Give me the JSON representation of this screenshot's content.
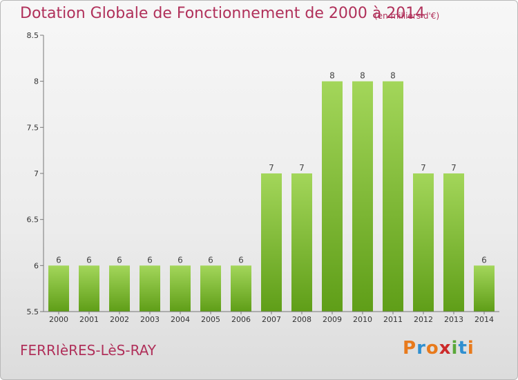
{
  "header": {
    "title": "Dotation Globale de Fonctionnement de 2000 à 2014",
    "subtitle": "(en milliers d'€)"
  },
  "footer": {
    "commune": "FERRIèRES-LèS-RAY",
    "logo": "Proxiti",
    "logo_colors": [
      "#e87a1c",
      "#2f8fd0",
      "#e87a1c",
      "#cc2a2a",
      "#5aa83a",
      "#2f8fd0",
      "#e87a1c"
    ]
  },
  "colors": {
    "title": "#b0305a",
    "bar_light": "#9fd24e",
    "bar_dark": "#5f9e18",
    "axis": "#666666"
  },
  "chart_data": {
    "type": "bar",
    "title": "Dotation Globale de Fonctionnement de 2000 à 2014",
    "subtitle": "(en milliers d'€)",
    "categories": [
      "2000",
      "2001",
      "2002",
      "2003",
      "2004",
      "2005",
      "2006",
      "2007",
      "2008",
      "2009",
      "2010",
      "2011",
      "2012",
      "2013",
      "2014"
    ],
    "values": [
      6,
      6,
      6,
      6,
      6,
      6,
      6,
      7,
      7,
      8,
      8,
      8,
      7,
      7,
      6
    ],
    "data_labels": [
      "6",
      "6",
      "6",
      "6",
      "6",
      "6",
      "6",
      "7",
      "7",
      "8",
      "8",
      "8",
      "7",
      "7",
      "6"
    ],
    "ylim": [
      5.5,
      8.5
    ],
    "yticks": [
      5.5,
      6,
      6.5,
      7,
      7.5,
      8,
      8.5
    ],
    "ytick_labels": [
      "5.5",
      "6",
      "6.5",
      "7",
      "7.5",
      "8",
      "8.5"
    ],
    "xlabel": "",
    "ylabel": "",
    "grid": false,
    "legend": "none"
  }
}
